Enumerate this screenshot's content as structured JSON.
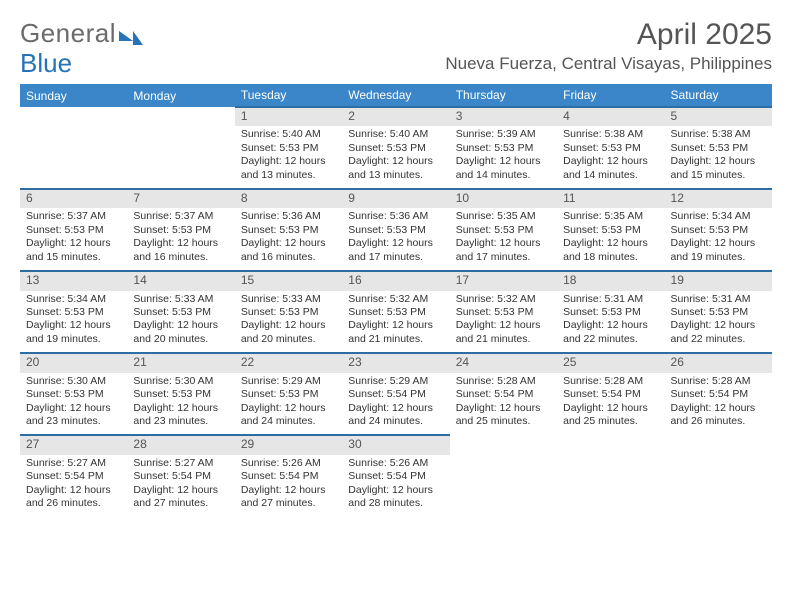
{
  "brand": {
    "part1": "General",
    "part2": "Blue"
  },
  "title": {
    "month": "April 2025",
    "location": "Nueva Fuerza, Central Visayas, Philippines"
  },
  "colors": {
    "header_bg": "#3a86c8",
    "header_text": "#ffffff",
    "row_divider": "#2e6da4",
    "daynum_bg": "#e6e6e6",
    "text": "#333333",
    "brand_gray": "#6b6b6b",
    "brand_blue": "#2573b8",
    "page_bg": "#ffffff"
  },
  "typography": {
    "month_fontsize": 30,
    "location_fontsize": 17,
    "dayheader_fontsize": 12,
    "daynum_fontsize": 12,
    "cell_fontsize": 10.5
  },
  "day_headers": [
    "Sunday",
    "Monday",
    "Tuesday",
    "Wednesday",
    "Thursday",
    "Friday",
    "Saturday"
  ],
  "weeks": [
    [
      null,
      null,
      {
        "n": "1",
        "sr": "Sunrise: 5:40 AM",
        "ss": "Sunset: 5:53 PM",
        "dl1": "Daylight: 12 hours",
        "dl2": "and 13 minutes."
      },
      {
        "n": "2",
        "sr": "Sunrise: 5:40 AM",
        "ss": "Sunset: 5:53 PM",
        "dl1": "Daylight: 12 hours",
        "dl2": "and 13 minutes."
      },
      {
        "n": "3",
        "sr": "Sunrise: 5:39 AM",
        "ss": "Sunset: 5:53 PM",
        "dl1": "Daylight: 12 hours",
        "dl2": "and 14 minutes."
      },
      {
        "n": "4",
        "sr": "Sunrise: 5:38 AM",
        "ss": "Sunset: 5:53 PM",
        "dl1": "Daylight: 12 hours",
        "dl2": "and 14 minutes."
      },
      {
        "n": "5",
        "sr": "Sunrise: 5:38 AM",
        "ss": "Sunset: 5:53 PM",
        "dl1": "Daylight: 12 hours",
        "dl2": "and 15 minutes."
      }
    ],
    [
      {
        "n": "6",
        "sr": "Sunrise: 5:37 AM",
        "ss": "Sunset: 5:53 PM",
        "dl1": "Daylight: 12 hours",
        "dl2": "and 15 minutes."
      },
      {
        "n": "7",
        "sr": "Sunrise: 5:37 AM",
        "ss": "Sunset: 5:53 PM",
        "dl1": "Daylight: 12 hours",
        "dl2": "and 16 minutes."
      },
      {
        "n": "8",
        "sr": "Sunrise: 5:36 AM",
        "ss": "Sunset: 5:53 PM",
        "dl1": "Daylight: 12 hours",
        "dl2": "and 16 minutes."
      },
      {
        "n": "9",
        "sr": "Sunrise: 5:36 AM",
        "ss": "Sunset: 5:53 PM",
        "dl1": "Daylight: 12 hours",
        "dl2": "and 17 minutes."
      },
      {
        "n": "10",
        "sr": "Sunrise: 5:35 AM",
        "ss": "Sunset: 5:53 PM",
        "dl1": "Daylight: 12 hours",
        "dl2": "and 17 minutes."
      },
      {
        "n": "11",
        "sr": "Sunrise: 5:35 AM",
        "ss": "Sunset: 5:53 PM",
        "dl1": "Daylight: 12 hours",
        "dl2": "and 18 minutes."
      },
      {
        "n": "12",
        "sr": "Sunrise: 5:34 AM",
        "ss": "Sunset: 5:53 PM",
        "dl1": "Daylight: 12 hours",
        "dl2": "and 19 minutes."
      }
    ],
    [
      {
        "n": "13",
        "sr": "Sunrise: 5:34 AM",
        "ss": "Sunset: 5:53 PM",
        "dl1": "Daylight: 12 hours",
        "dl2": "and 19 minutes."
      },
      {
        "n": "14",
        "sr": "Sunrise: 5:33 AM",
        "ss": "Sunset: 5:53 PM",
        "dl1": "Daylight: 12 hours",
        "dl2": "and 20 minutes."
      },
      {
        "n": "15",
        "sr": "Sunrise: 5:33 AM",
        "ss": "Sunset: 5:53 PM",
        "dl1": "Daylight: 12 hours",
        "dl2": "and 20 minutes."
      },
      {
        "n": "16",
        "sr": "Sunrise: 5:32 AM",
        "ss": "Sunset: 5:53 PM",
        "dl1": "Daylight: 12 hours",
        "dl2": "and 21 minutes."
      },
      {
        "n": "17",
        "sr": "Sunrise: 5:32 AM",
        "ss": "Sunset: 5:53 PM",
        "dl1": "Daylight: 12 hours",
        "dl2": "and 21 minutes."
      },
      {
        "n": "18",
        "sr": "Sunrise: 5:31 AM",
        "ss": "Sunset: 5:53 PM",
        "dl1": "Daylight: 12 hours",
        "dl2": "and 22 minutes."
      },
      {
        "n": "19",
        "sr": "Sunrise: 5:31 AM",
        "ss": "Sunset: 5:53 PM",
        "dl1": "Daylight: 12 hours",
        "dl2": "and 22 minutes."
      }
    ],
    [
      {
        "n": "20",
        "sr": "Sunrise: 5:30 AM",
        "ss": "Sunset: 5:53 PM",
        "dl1": "Daylight: 12 hours",
        "dl2": "and 23 minutes."
      },
      {
        "n": "21",
        "sr": "Sunrise: 5:30 AM",
        "ss": "Sunset: 5:53 PM",
        "dl1": "Daylight: 12 hours",
        "dl2": "and 23 minutes."
      },
      {
        "n": "22",
        "sr": "Sunrise: 5:29 AM",
        "ss": "Sunset: 5:53 PM",
        "dl1": "Daylight: 12 hours",
        "dl2": "and 24 minutes."
      },
      {
        "n": "23",
        "sr": "Sunrise: 5:29 AM",
        "ss": "Sunset: 5:54 PM",
        "dl1": "Daylight: 12 hours",
        "dl2": "and 24 minutes."
      },
      {
        "n": "24",
        "sr": "Sunrise: 5:28 AM",
        "ss": "Sunset: 5:54 PM",
        "dl1": "Daylight: 12 hours",
        "dl2": "and 25 minutes."
      },
      {
        "n": "25",
        "sr": "Sunrise: 5:28 AM",
        "ss": "Sunset: 5:54 PM",
        "dl1": "Daylight: 12 hours",
        "dl2": "and 25 minutes."
      },
      {
        "n": "26",
        "sr": "Sunrise: 5:28 AM",
        "ss": "Sunset: 5:54 PM",
        "dl1": "Daylight: 12 hours",
        "dl2": "and 26 minutes."
      }
    ],
    [
      {
        "n": "27",
        "sr": "Sunrise: 5:27 AM",
        "ss": "Sunset: 5:54 PM",
        "dl1": "Daylight: 12 hours",
        "dl2": "and 26 minutes."
      },
      {
        "n": "28",
        "sr": "Sunrise: 5:27 AM",
        "ss": "Sunset: 5:54 PM",
        "dl1": "Daylight: 12 hours",
        "dl2": "and 27 minutes."
      },
      {
        "n": "29",
        "sr": "Sunrise: 5:26 AM",
        "ss": "Sunset: 5:54 PM",
        "dl1": "Daylight: 12 hours",
        "dl2": "and 27 minutes."
      },
      {
        "n": "30",
        "sr": "Sunrise: 5:26 AM",
        "ss": "Sunset: 5:54 PM",
        "dl1": "Daylight: 12 hours",
        "dl2": "and 28 minutes."
      },
      null,
      null,
      null
    ]
  ]
}
